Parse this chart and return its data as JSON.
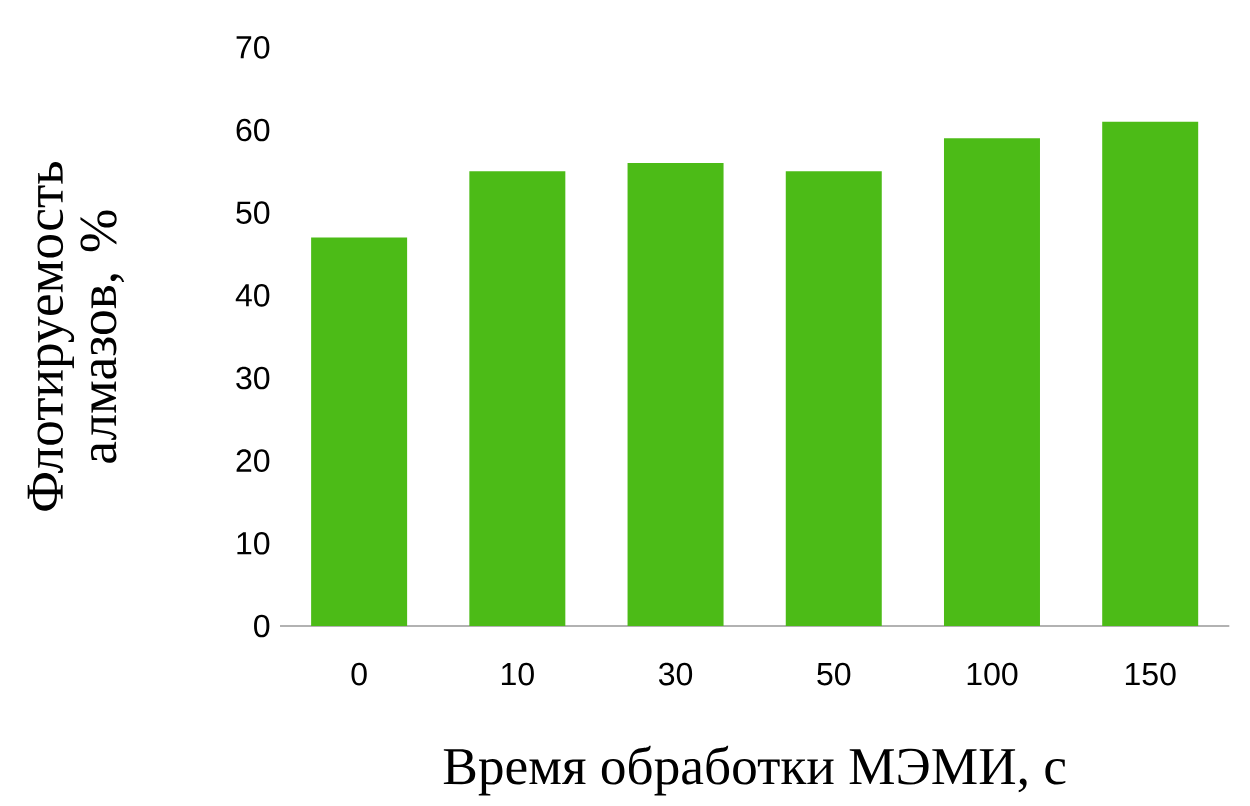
{
  "chart_data": {
    "type": "bar",
    "xlabel": "Время обработки МЭМИ, с",
    "ylabel": "Флотируемость алмазов, %",
    "categories": [
      "0",
      "10",
      "30",
      "50",
      "100",
      "150"
    ],
    "values": [
      47,
      55,
      56,
      55,
      59,
      61
    ],
    "color": "#4cbb17",
    "ylim": [
      0,
      70
    ],
    "yticks": [
      0,
      10,
      20,
      30,
      40,
      50,
      60,
      70
    ],
    "grid": false
  }
}
